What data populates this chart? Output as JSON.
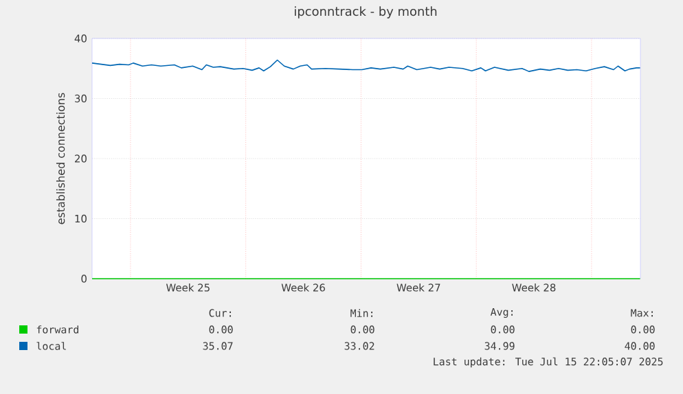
{
  "chart_data": {
    "type": "line",
    "title": "ipconntrack - by month",
    "ylabel": "established connections",
    "x": [
      "2025-06-12T16:00",
      "2025-06-13T05:26",
      "2025-06-13T18:38",
      "2025-06-14T08:05",
      "2025-06-14T21:17",
      "2025-06-15T04:00",
      "2025-06-15T17:26",
      "2025-06-16T06:38",
      "2025-06-16T20:05",
      "2025-06-17T16:00",
      "2025-06-18T02:05",
      "2025-06-18T18:38",
      "2025-06-19T08:05",
      "2025-06-19T14:34",
      "2025-06-20T00:38",
      "2025-06-20T10:43",
      "2025-06-21T06:38",
      "2025-06-21T20:05",
      "2025-06-22T09:17",
      "2025-06-22T19:22",
      "2025-06-23T02:05",
      "2025-06-23T11:55",
      "2025-06-23T22:00",
      "2025-06-24T08:05",
      "2025-06-24T21:17",
      "2025-06-25T07:22",
      "2025-06-25T17:26",
      "2025-06-25T23:55",
      "2025-06-26T20:05",
      "2025-06-27T16:00",
      "2025-06-28T11:55",
      "2025-06-29T01:22",
      "2025-06-29T14:34",
      "2025-06-30T04:00",
      "2025-06-30T23:55",
      "2025-07-01T13:22",
      "2025-07-01T20:05",
      "2025-07-02T09:17",
      "2025-07-03T05:26",
      "2025-07-03T18:38",
      "2025-07-04T08:05",
      "2025-07-05T04:00",
      "2025-07-05T17:26",
      "2025-07-06T06:38",
      "2025-07-06T13:22",
      "2025-07-07T02:34",
      "2025-07-07T22:43",
      "2025-07-08T18:38",
      "2025-07-09T04:43",
      "2025-07-09T21:17",
      "2025-07-10T10:43",
      "2025-07-10T23:55",
      "2025-07-11T13:22",
      "2025-07-12T02:34",
      "2025-07-12T16:00",
      "2025-07-13T05:26",
      "2025-07-13T18:38",
      "2025-07-14T08:05",
      "2025-07-14T14:34",
      "2025-07-15T00:38",
      "2025-07-15T07:22",
      "2025-07-15T17:26",
      "2025-07-15T22:43"
    ],
    "series": [
      {
        "name": "forward",
        "color": "#00cc00",
        "x": [
          "2025-06-12T16:00",
          "2025-07-15T22:43"
        ],
        "values": [
          0,
          0
        ]
      },
      {
        "name": "local",
        "color": "#0066b3",
        "values": [
          35.9,
          35.7,
          35.5,
          35.7,
          35.6,
          35.9,
          35.4,
          35.6,
          35.4,
          35.6,
          35.1,
          35.4,
          34.8,
          35.6,
          35.2,
          35.3,
          34.9,
          35.0,
          34.7,
          35.1,
          34.6,
          35.3,
          36.4,
          35.4,
          34.9,
          35.4,
          35.6,
          34.9,
          35.0,
          34.9,
          34.8,
          34.8,
          35.1,
          34.9,
          35.2,
          34.9,
          35.4,
          34.8,
          35.2,
          34.9,
          35.2,
          35.0,
          34.6,
          35.1,
          34.6,
          35.2,
          34.7,
          35.0,
          34.5,
          34.9,
          34.7,
          35.0,
          34.7,
          34.8,
          34.6,
          35.0,
          35.3,
          34.8,
          35.4,
          34.6,
          34.9,
          35.1,
          35.1
        ]
      }
    ],
    "xlim": [
      "2025-06-12T16:00",
      "2025-07-15T23:12"
    ],
    "xticks": [
      {
        "value": "2025-06-18T12:00",
        "label": "Week 25"
      },
      {
        "value": "2025-06-25T12:00",
        "label": "Week 26"
      },
      {
        "value": "2025-07-02T12:00",
        "label": "Week 27"
      },
      {
        "value": "2025-07-09T12:00",
        "label": "Week 28"
      }
    ],
    "ylim": [
      0,
      40
    ],
    "yticks": [
      0,
      10,
      20,
      30,
      40
    ],
    "grid": "y",
    "ref_lines": [
      {
        "axis": "x",
        "value": "2025-06-15",
        "color": "#ff9999",
        "line_style": "dotted"
      },
      {
        "axis": "x",
        "value": "2025-06-22",
        "color": "#ff9999",
        "line_style": "dotted"
      },
      {
        "axis": "x",
        "value": "2025-06-29",
        "color": "#ff9999",
        "line_style": "dotted"
      },
      {
        "axis": "x",
        "value": "2025-07-06",
        "color": "#ff9999",
        "line_style": "dotted"
      },
      {
        "axis": "x",
        "value": "2025-07-13",
        "color": "#ff9999",
        "line_style": "dotted"
      }
    ],
    "legend": "bottom",
    "annotations": [
      "Cur:",
      "Min:",
      "Avg:",
      "Max:",
      "0.00",
      "0.00",
      "0.00",
      "0.00",
      "35.07",
      "33.02",
      "34.99",
      "40.00",
      "Last update: Tue Jul 15 22:05:07 2025"
    ]
  }
}
